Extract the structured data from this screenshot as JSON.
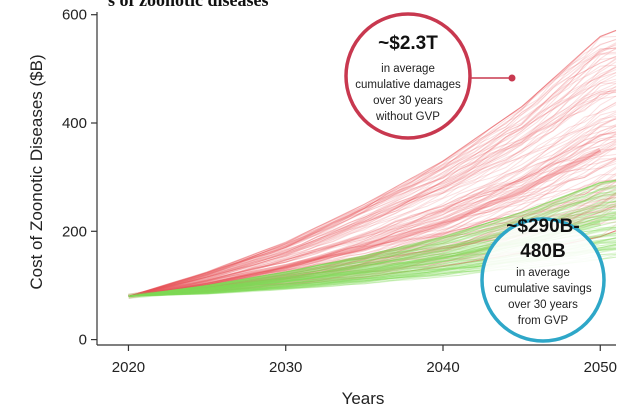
{
  "chart_data": {
    "type": "line",
    "title_cropped": "s of zoonotic diseases",
    "xlabel": "Years",
    "ylabel": "Cost of Zoonotic Diseases ($B)",
    "xlim": [
      2018,
      2051
    ],
    "ylim": [
      -10,
      605
    ],
    "xticks": [
      2020,
      2030,
      2040,
      2050
    ],
    "yticks": [
      0,
      200,
      400,
      600
    ],
    "grid": false,
    "series": [
      {
        "color": "#e8545a",
        "x": [
          2020,
          2025,
          2030,
          2035,
          2040,
          2045,
          2050
        ],
        "band_low": [
          80,
          88,
          100,
          115,
          135,
          160,
          190
        ],
        "band_high": [
          80,
          125,
          180,
          250,
          330,
          430,
          560
        ],
        "center": [
          80,
          105,
          135,
          170,
          215,
          275,
          350
        ]
      },
      {
        "color": "#7ed957",
        "x": [
          2020,
          2025,
          2030,
          2035,
          2040,
          2045,
          2050
        ],
        "band_low": [
          80,
          84,
          92,
          102,
          115,
          130,
          148
        ],
        "band_high": [
          80,
          100,
          125,
          155,
          190,
          235,
          290
        ],
        "center": [
          80,
          92,
          106,
          124,
          148,
          178,
          215
        ]
      }
    ],
    "annotations": [
      {
        "big": "~$2.3T",
        "lines": [
          "in average",
          "cumulative damages",
          "over 30 years",
          "without GVP"
        ],
        "color": "#c8384f"
      },
      {
        "big": "~$290B-",
        "big2": "480B",
        "lines": [
          "in average",
          "cumulative savings",
          "over 30 years",
          "from GVP"
        ],
        "color": "#2ea7c8"
      }
    ]
  }
}
